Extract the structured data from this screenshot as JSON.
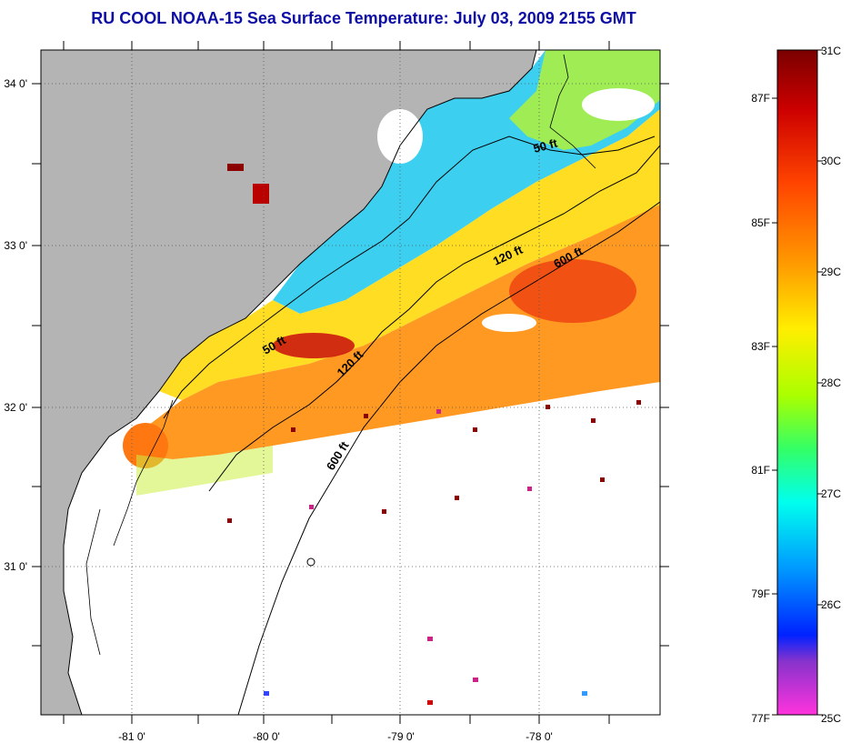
{
  "title": "RU COOL  NOAA-15  Sea Surface Temperature:  July 03, 2009 2155 GMT",
  "map": {
    "lon_labels": [
      "-81 0'",
      "-80 0'",
      "-79 0'",
      "-78 0'"
    ],
    "lat_labels": [
      "34 0'",
      "33 0'",
      "32 0'",
      "31 0'"
    ],
    "contour_labels": [
      "50 ft",
      "120 ft",
      "600 ft",
      "50 ft",
      "120 ft",
      "600 ft"
    ],
    "colors": {
      "land": "#b4b4b4",
      "cloud": "#ffffff",
      "coast": "#000000"
    }
  },
  "colorbar": {
    "fahrenheit_labels": [
      "87F",
      "85F",
      "83F",
      "81F",
      "79F",
      "77F"
    ],
    "celsius_labels": [
      "31C",
      "30C",
      "29C",
      "28C",
      "27C",
      "26C",
      "25C"
    ],
    "gradient_colors": [
      "#7a0000",
      "#cc0000",
      "#ff4400",
      "#ff9900",
      "#ffee00",
      "#aaff00",
      "#33ff66",
      "#00ffee",
      "#0099ff",
      "#0022ff",
      "#8833cc",
      "#ff33dd"
    ]
  }
}
